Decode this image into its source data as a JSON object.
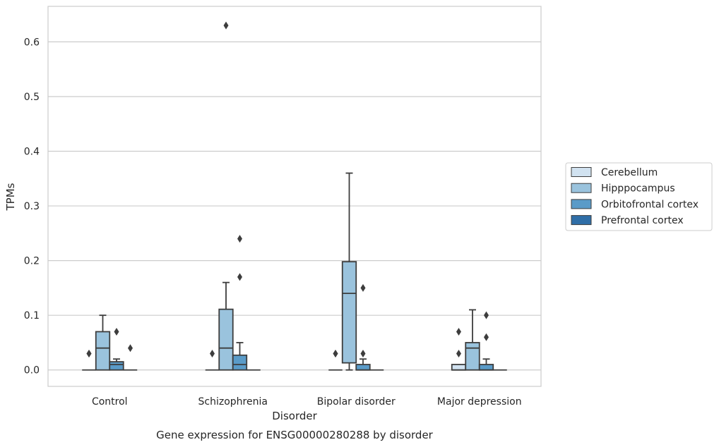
{
  "chart_data": {
    "type": "box",
    "title": "",
    "caption": "Gene expression for ENSG00000280288 by disorder",
    "xlabel": "Disorder",
    "ylabel": "TPMs",
    "ylim": [
      -0.03,
      0.665
    ],
    "yticks": [
      0.0,
      0.1,
      0.2,
      0.3,
      0.4,
      0.5,
      0.6
    ],
    "ytick_labels": [
      "0.0",
      "0.1",
      "0.2",
      "0.3",
      "0.4",
      "0.5",
      "0.6"
    ],
    "grid": "horizontal",
    "legend_placement": "right",
    "categories": [
      "Control",
      "Schizophrenia",
      "Bipolar disorder",
      "Major depression"
    ],
    "series": [
      {
        "name": "Cerebellum",
        "color": "#d1e2f0",
        "boxes": [
          {
            "whislo": 0,
            "q1": 0,
            "med": 0,
            "q3": 0,
            "whishi": 0,
            "fliers": [
              0.03,
              0.03
            ]
          },
          {
            "whislo": 0,
            "q1": 0,
            "med": 0,
            "q3": 0,
            "whishi": 0,
            "fliers": [
              0.03
            ]
          },
          {
            "whislo": 0,
            "q1": 0,
            "med": 0,
            "q3": 0,
            "whishi": 0,
            "fliers": [
              0.03,
              0.03
            ]
          },
          {
            "whislo": 0,
            "q1": 0,
            "med": 0,
            "q3": 0.01,
            "whishi": 0.01,
            "fliers": [
              0.03,
              0.07
            ]
          }
        ]
      },
      {
        "name": "Hipppocampus",
        "color": "#9ac3dd",
        "boxes": [
          {
            "whislo": 0,
            "q1": 0,
            "med": 0.04,
            "q3": 0.07,
            "whishi": 0.1,
            "fliers": []
          },
          {
            "whislo": 0,
            "q1": 0,
            "med": 0.04,
            "q3": 0.111,
            "whishi": 0.16,
            "fliers": [
              0.63
            ]
          },
          {
            "whislo": 0,
            "q1": 0.013,
            "med": 0.14,
            "q3": 0.198,
            "whishi": 0.36,
            "fliers": []
          },
          {
            "whislo": 0,
            "q1": 0,
            "med": 0.04,
            "q3": 0.05,
            "whishi": 0.11,
            "fliers": []
          }
        ]
      },
      {
        "name": "Orbitofrontal cortex",
        "color": "#5a9bc8",
        "boxes": [
          {
            "whislo": 0,
            "q1": 0,
            "med": 0.01,
            "q3": 0.015,
            "whishi": 0.02,
            "fliers": [
              0.07
            ]
          },
          {
            "whislo": 0,
            "q1": 0,
            "med": 0.01,
            "q3": 0.027,
            "whishi": 0.05,
            "fliers": [
              0.17,
              0.24
            ]
          },
          {
            "whislo": 0,
            "q1": 0,
            "med": 0,
            "q3": 0.01,
            "whishi": 0.02,
            "fliers": [
              0.03,
              0.15
            ]
          },
          {
            "whislo": 0,
            "q1": 0,
            "med": 0,
            "q3": 0.01,
            "whishi": 0.02,
            "fliers": [
              0.06,
              0.1
            ]
          }
        ]
      },
      {
        "name": "Prefrontal cortex",
        "color": "#2f6ea7",
        "boxes": [
          {
            "whislo": 0,
            "q1": 0,
            "med": 0,
            "q3": 0,
            "whishi": 0,
            "fliers": [
              0.04
            ]
          },
          {
            "whislo": 0,
            "q1": 0,
            "med": 0,
            "q3": 0,
            "whishi": 0,
            "fliers": []
          },
          {
            "whislo": 0,
            "q1": 0,
            "med": 0,
            "q3": 0,
            "whishi": 0,
            "fliers": []
          },
          {
            "whislo": 0,
            "q1": 0,
            "med": 0,
            "q3": 0,
            "whishi": 0,
            "fliers": []
          }
        ]
      }
    ]
  }
}
